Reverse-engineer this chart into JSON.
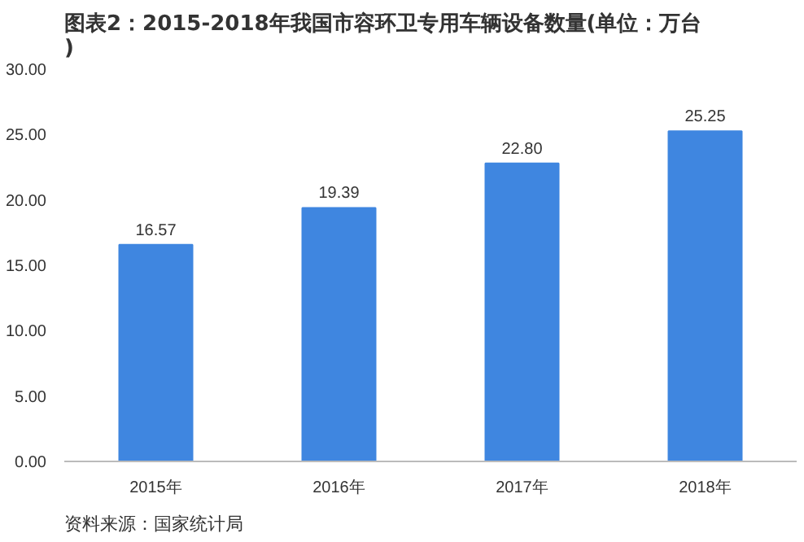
{
  "chart_data": {
    "type": "bar",
    "title": "图表2：2015-2018年我国市容环卫专用车辆设备数量(单位：万台)",
    "categories": [
      "2015年",
      "2016年",
      "2017年",
      "2018年"
    ],
    "values": [
      16.57,
      19.39,
      22.8,
      25.25
    ],
    "value_labels": [
      "16.57",
      "19.39",
      "22.80",
      "25.25"
    ],
    "color": "#3f86e0",
    "ylim": [
      0,
      30
    ],
    "yticks": [
      {
        "value": 0,
        "label": "0.00"
      },
      {
        "value": 5,
        "label": "5.00"
      },
      {
        "value": 10,
        "label": "10.00"
      },
      {
        "value": 15,
        "label": "15.00"
      },
      {
        "value": 20,
        "label": "20.00"
      },
      {
        "value": 25,
        "label": "25.00"
      },
      {
        "value": 30,
        "label": "30.00"
      }
    ],
    "grid": false,
    "annotations": [
      "资料来源：国家统计局"
    ]
  }
}
